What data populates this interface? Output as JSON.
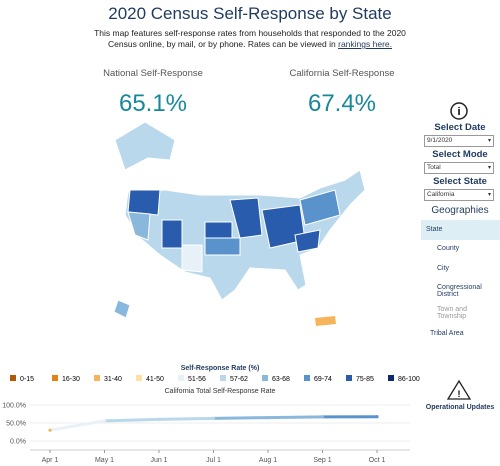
{
  "header": {
    "title": "2020 Census Self-Response by State",
    "description": "This map features self-response rates from households that responded to the 2020 Census online, by mail, or by phone. Rates can be viewed in",
    "link": "rankings here."
  },
  "kpis": [
    {
      "label": "National Self-Response",
      "value": "65.1%"
    },
    {
      "label": "California Self-Response",
      "value": "67.4%"
    }
  ],
  "controls": [
    {
      "label": "Select Date",
      "value": "9/1/2020"
    },
    {
      "label": "Select Mode",
      "value": "Total"
    },
    {
      "label": "Select State",
      "value": "California"
    }
  ],
  "geographies": {
    "title": "Geographies",
    "items": [
      "State",
      "County",
      "City",
      "Congressional District",
      "Town and Township",
      "Tribal Area"
    ]
  },
  "updates": "Operational Updates",
  "legend": {
    "title": "Self-Response Rate (%)",
    "items": [
      {
        "label": "0-15",
        "color": "#b35806"
      },
      {
        "label": "16-30",
        "color": "#e08214"
      },
      {
        "label": "31-40",
        "color": "#f6b55b"
      },
      {
        "label": "41-50",
        "color": "#fee0a0"
      },
      {
        "label": "51-56",
        "color": "#e8f1f8"
      },
      {
        "label": "57-62",
        "color": "#b9d8ec"
      },
      {
        "label": "63-68",
        "color": "#8ab8dc"
      },
      {
        "label": "69-74",
        "color": "#5a93cc"
      },
      {
        "label": "75-85",
        "color": "#2a5cad"
      },
      {
        "label": "86-100",
        "color": "#0d2a6b"
      }
    ]
  },
  "chart_data": {
    "type": "line",
    "title": "California Total Self-Response Rate",
    "x": [
      "Apr 1",
      "May 1",
      "Jun 1",
      "Jul 1",
      "Aug 1",
      "Sep 1",
      "Oct 1"
    ],
    "series": [
      {
        "values": [
          30,
          56,
          60,
          63,
          65,
          67,
          67.4
        ],
        "colors": [
          "#f6b55b",
          "#e8f1f8",
          "#b9d8ec",
          "#b9d8ec",
          "#8ab8dc",
          "#8ab8dc",
          "#5a93cc"
        ]
      }
    ],
    "ylim": [
      0,
      100
    ],
    "yticks": [
      {
        "value": 0,
        "label": "0.0%"
      },
      {
        "value": 50,
        "label": "50.0%"
      },
      {
        "value": 100,
        "label": "100.0%"
      }
    ]
  }
}
